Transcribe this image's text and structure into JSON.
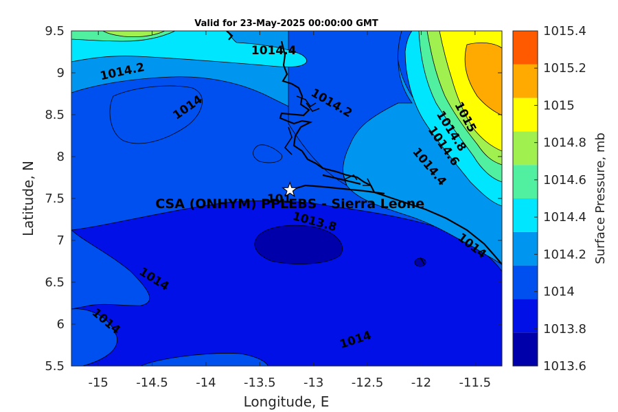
{
  "chart_data": {
    "type": "contour",
    "title": "Valid for 23-May-2025 00:00:00 GMT",
    "xlabel": "Longitude, E",
    "ylabel": "Latitude, N",
    "xlim": [
      -15.25,
      -11.25
    ],
    "ylim": [
      5.5,
      9.5
    ],
    "x_ticks": [
      -15,
      -14.5,
      -14,
      -13.5,
      -13,
      -12.5,
      -12,
      -11.5
    ],
    "y_ticks": [
      5.5,
      6,
      6.5,
      7,
      7.5,
      8,
      8.5,
      9,
      9.5
    ],
    "x_tick_labels": [
      "-15",
      "-14.5",
      "-14",
      "-13.5",
      "-13",
      "-12.5",
      "-12",
      "-11.5"
    ],
    "y_tick_labels": [
      "5.5",
      "6",
      "6.5",
      "7",
      "7.5",
      "8",
      "8.5",
      "9",
      "9.5"
    ],
    "colorbar": {
      "label": "Surface Pressure, mb",
      "levels": [
        1013.6,
        1013.8,
        1014,
        1014.2,
        1014.4,
        1014.6,
        1014.8,
        1015,
        1015.2,
        1015.4
      ],
      "level_labels": [
        "1013.6",
        "1013.8",
        "1014",
        "1014.2",
        "1014.4",
        "1014.6",
        "1014.8",
        "1015",
        "1015.2",
        "1015.4"
      ],
      "colors": [
        "#0000aa",
        "#0010e6",
        "#0050f0",
        "#0096f0",
        "#00e6ff",
        "#50f0a0",
        "#a0f050",
        "#ffff00",
        "#ffaa00",
        "#ff5a00"
      ]
    },
    "contour_labels": [
      {
        "text": "1014.4",
        "lon": -13.37,
        "lat": 9.22,
        "angle": 0
      },
      {
        "text": "1014.2",
        "lon": -14.77,
        "lat": 8.97,
        "angle": -12
      },
      {
        "text": "1014",
        "lon": -14.15,
        "lat": 8.55,
        "angle": -35
      },
      {
        "text": "1014.2",
        "lon": -12.85,
        "lat": 8.6,
        "angle": 30
      },
      {
        "text": "1015",
        "lon": -11.62,
        "lat": 8.45,
        "angle": 62
      },
      {
        "text": "1014.8",
        "lon": -11.75,
        "lat": 8.28,
        "angle": 58
      },
      {
        "text": "1014.6",
        "lon": -11.82,
        "lat": 8.1,
        "angle": 55
      },
      {
        "text": "1014.4",
        "lon": -11.95,
        "lat": 7.85,
        "angle": 50
      },
      {
        "text": "1013.8",
        "lon": -13.0,
        "lat": 7.18,
        "angle": 15
      },
      {
        "text": "1014",
        "lon": -11.55,
        "lat": 6.9,
        "angle": 38
      },
      {
        "text": "1014",
        "lon": -14.5,
        "lat": 6.5,
        "angle": 32
      },
      {
        "text": "1014",
        "lon": -14.95,
        "lat": 6.0,
        "angle": 40
      },
      {
        "text": "1014",
        "lon": -12.6,
        "lat": 5.77,
        "angle": -18
      },
      {
        "text": "101",
        "lon": -13.32,
        "lat": 7.45,
        "angle": 0
      }
    ],
    "station": {
      "name": "CSA (ONHYM) PPLEBS - Sierra Leone",
      "lon": -13.22,
      "lat": 7.6
    }
  }
}
